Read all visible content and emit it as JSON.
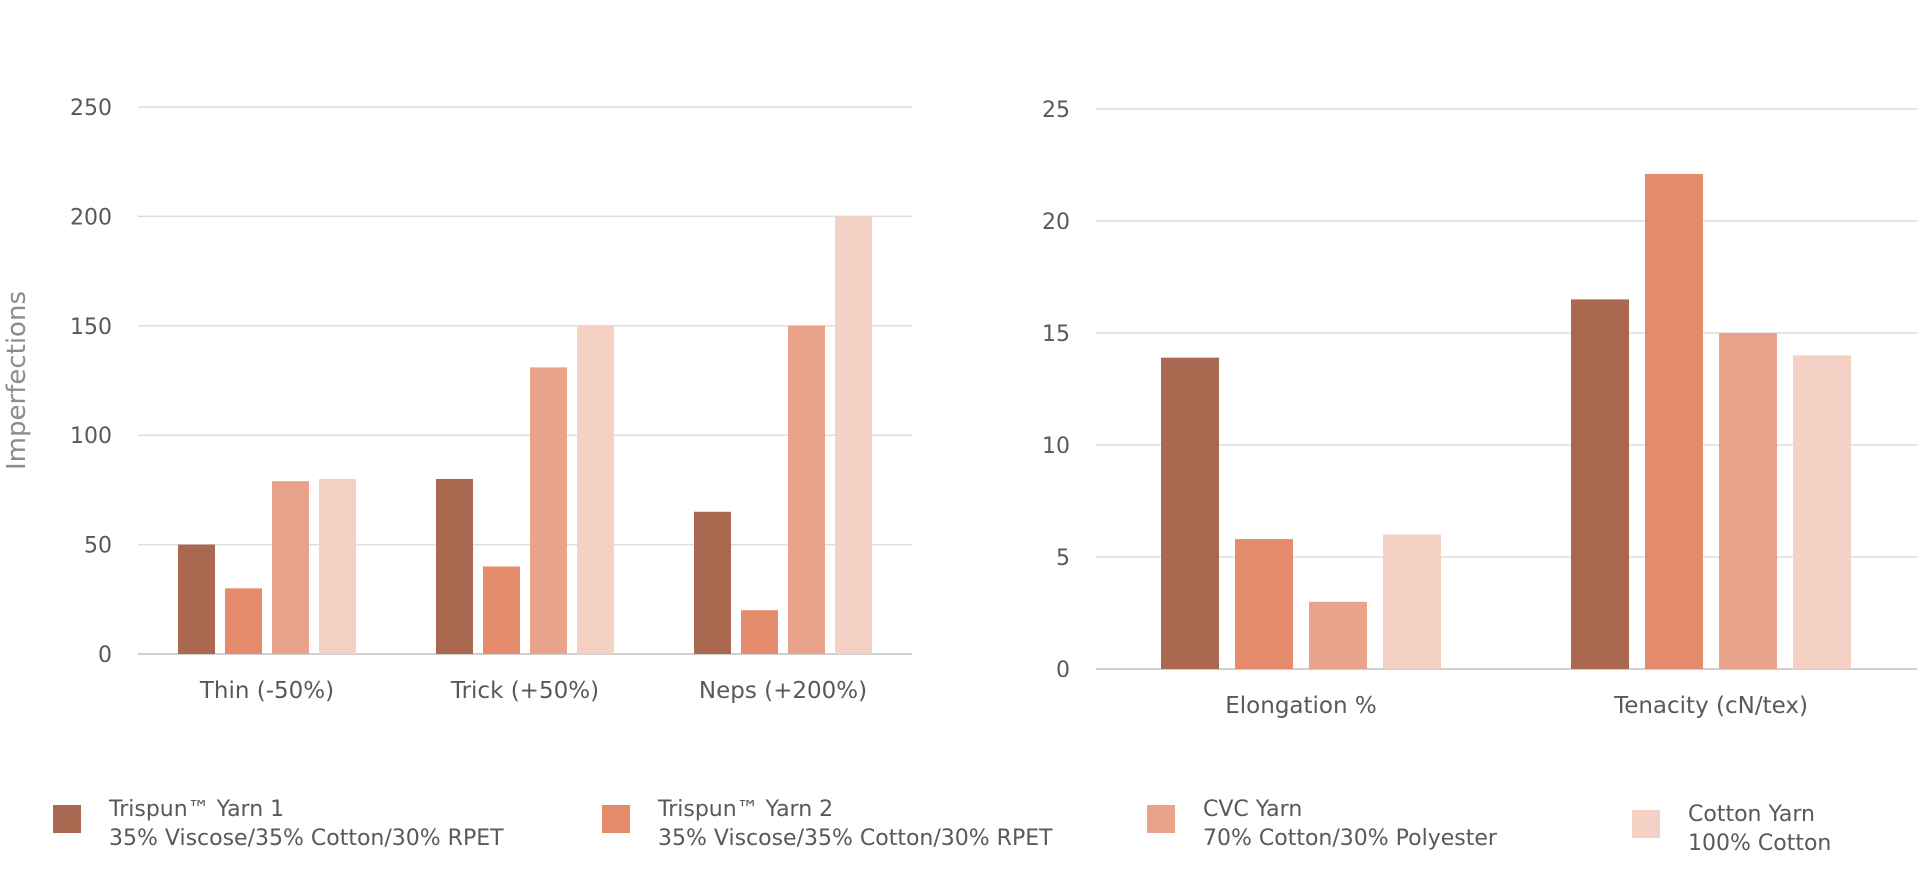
{
  "chart_data": [
    {
      "type": "bar",
      "title": "",
      "xlabel": "",
      "ylabel": "Imperfections",
      "ylim": [
        0,
        250
      ],
      "yticks": [
        0,
        50,
        100,
        150,
        200,
        250
      ],
      "grid": true,
      "categories": [
        "Thin (-50%)",
        "Trick (+50%)",
        "Neps (+200%)"
      ],
      "series": [
        {
          "name": "Trispun™ Yarn 1",
          "values": [
            50,
            80,
            65
          ],
          "color": "#ab6850"
        },
        {
          "name": "Trispun™ Yarn 2",
          "values": [
            30,
            40,
            20
          ],
          "color": "#e48b6b"
        },
        {
          "name": "CVC Yarn",
          "values": [
            79,
            131,
            150
          ],
          "color": "#eaa38b"
        },
        {
          "name": "Cotton Yarn",
          "values": [
            80,
            150,
            200
          ],
          "color": "#f5d0c4"
        }
      ]
    },
    {
      "type": "bar",
      "title": "",
      "xlabel": "",
      "ylabel": "",
      "ylim": [
        0,
        25
      ],
      "yticks": [
        0,
        5,
        10,
        15,
        20,
        25
      ],
      "grid": true,
      "categories": [
        "Elongation %",
        "Tenacity (cN/tex)"
      ],
      "series": [
        {
          "name": "Trispun™ Yarn 1",
          "values": [
            13.9,
            16.5
          ],
          "color": "#ab6850"
        },
        {
          "name": "Trispun™ Yarn 2",
          "values": [
            5.8,
            22.1
          ],
          "color": "#e48b6b"
        },
        {
          "name": "CVC Yarn",
          "values": [
            3.0,
            15.0
          ],
          "color": "#eaa38b"
        },
        {
          "name": "Cotton Yarn",
          "values": [
            6.0,
            14.0
          ],
          "color": "#f5d0c4"
        }
      ]
    }
  ],
  "legend": {
    "position": "bottom",
    "items": [
      {
        "line1": "Trispun™ Yarn 1",
        "line2": "35% Viscose/35% Cotton/30% RPET",
        "color": "#ab6850"
      },
      {
        "line1": "Trispun™ Yarn 2",
        "line2": "35% Viscose/35% Cotton/30% RPET",
        "color": "#e48b6b"
      },
      {
        "line1": "CVC Yarn",
        "line2": "70% Cotton/30% Polyester",
        "color": "#eaa38b"
      },
      {
        "line1": "Cotton Yarn",
        "line2": "100% Cotton",
        "color": "#f5d0c4"
      }
    ]
  }
}
